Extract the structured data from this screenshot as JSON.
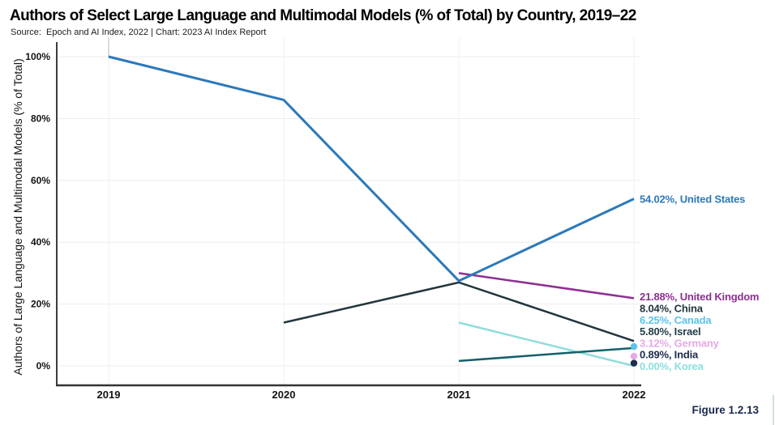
{
  "header": {
    "title": "Authors of Select Large Language and Multimodal Models (% of Total) by Country, 2019–22",
    "subtitle": "Source:  Epoch and AI Index, 2022 | Chart: 2023 AI Index Report"
  },
  "caption": "Figure 1.2.13",
  "chart_data": {
    "type": "line",
    "title": "Authors of Select Large Language and Multimodal Models (% of Total) by Country, 2019–22",
    "xlabel": "",
    "ylabel": "Authors of Large Language and Multimodal Models (% of Total)",
    "x_categories": [
      "2019",
      "2020",
      "2021",
      "2022"
    ],
    "ylim": [
      0,
      100
    ],
    "yticks": [
      "0%",
      "20%",
      "40%",
      "60%",
      "80%",
      "100%"
    ],
    "grid": true,
    "legend_position": "right-end-labels",
    "series": [
      {
        "name": "United States",
        "color": "#2c79b9",
        "points": [
          [
            2019,
            100
          ],
          [
            2020,
            86
          ],
          [
            2021,
            27.5
          ],
          [
            2022,
            54.02
          ]
        ],
        "label": "54.02%, United States"
      },
      {
        "name": "United Kingdom",
        "color": "#8e2f93",
        "points": [
          [
            2021,
            30
          ],
          [
            2022,
            21.88
          ]
        ],
        "label": "21.88%, United Kingdom"
      },
      {
        "name": "China",
        "color": "#22353d",
        "points": [
          [
            2020,
            14
          ],
          [
            2021,
            27
          ],
          [
            2022,
            8.04
          ]
        ],
        "label": "8.04%, China"
      },
      {
        "name": "Canada",
        "color": "#5ac3e8",
        "points": [
          [
            2022,
            6.25
          ]
        ],
        "label": "6.25%, Canada"
      },
      {
        "name": "Israel",
        "color": "#14606b",
        "label_color": "#1f3d47",
        "points": [
          [
            2021,
            1.6
          ],
          [
            2022,
            5.8
          ]
        ],
        "label": "5.80%, Israel"
      },
      {
        "name": "Germany",
        "color": "#e5a9e6",
        "points": [
          [
            2022,
            3.12
          ]
        ],
        "label": "3.12%, Germany"
      },
      {
        "name": "India",
        "color": "#1d2b4c",
        "points": [
          [
            2022,
            0.89
          ]
        ],
        "label": "0.89%, India"
      },
      {
        "name": "Korea",
        "color": "#8edddd",
        "points": [
          [
            2021,
            14
          ],
          [
            2022,
            0
          ]
        ],
        "label": "0.00%, Korea"
      }
    ]
  }
}
